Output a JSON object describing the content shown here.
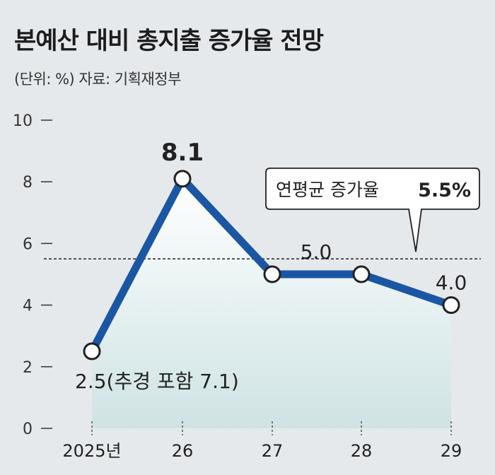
{
  "title": "본예산 대비 총지출 증가율 전망",
  "subtitle": "(단위: %) 자료: 기획재정부",
  "chart_data": {
    "type": "line",
    "title": "본예산 대비 총지출 증가율 전망",
    "x": [
      "2025년",
      "26",
      "27",
      "28",
      "29"
    ],
    "series": [
      {
        "values": [
          2.5,
          8.1,
          5.0,
          5.0,
          4.0
        ]
      }
    ],
    "y_ticks": [
      "10",
      "8",
      "6",
      "4",
      "2",
      "0"
    ],
    "ylim": [
      0,
      10
    ],
    "data_labels": [
      "2.5(추경 포함 7.1)",
      "8.1",
      "",
      "5.0",
      "4.0"
    ],
    "reference_line": {
      "value": 5.5,
      "label": "연평균 증가율",
      "value_label": "5.5%"
    },
    "grid": false,
    "legend": "none",
    "colors": {
      "line": "#1a56a3",
      "fill_top": "#ffffff",
      "fill_bottom": "#cfe3e4",
      "background": "#e6e9ec"
    }
  }
}
